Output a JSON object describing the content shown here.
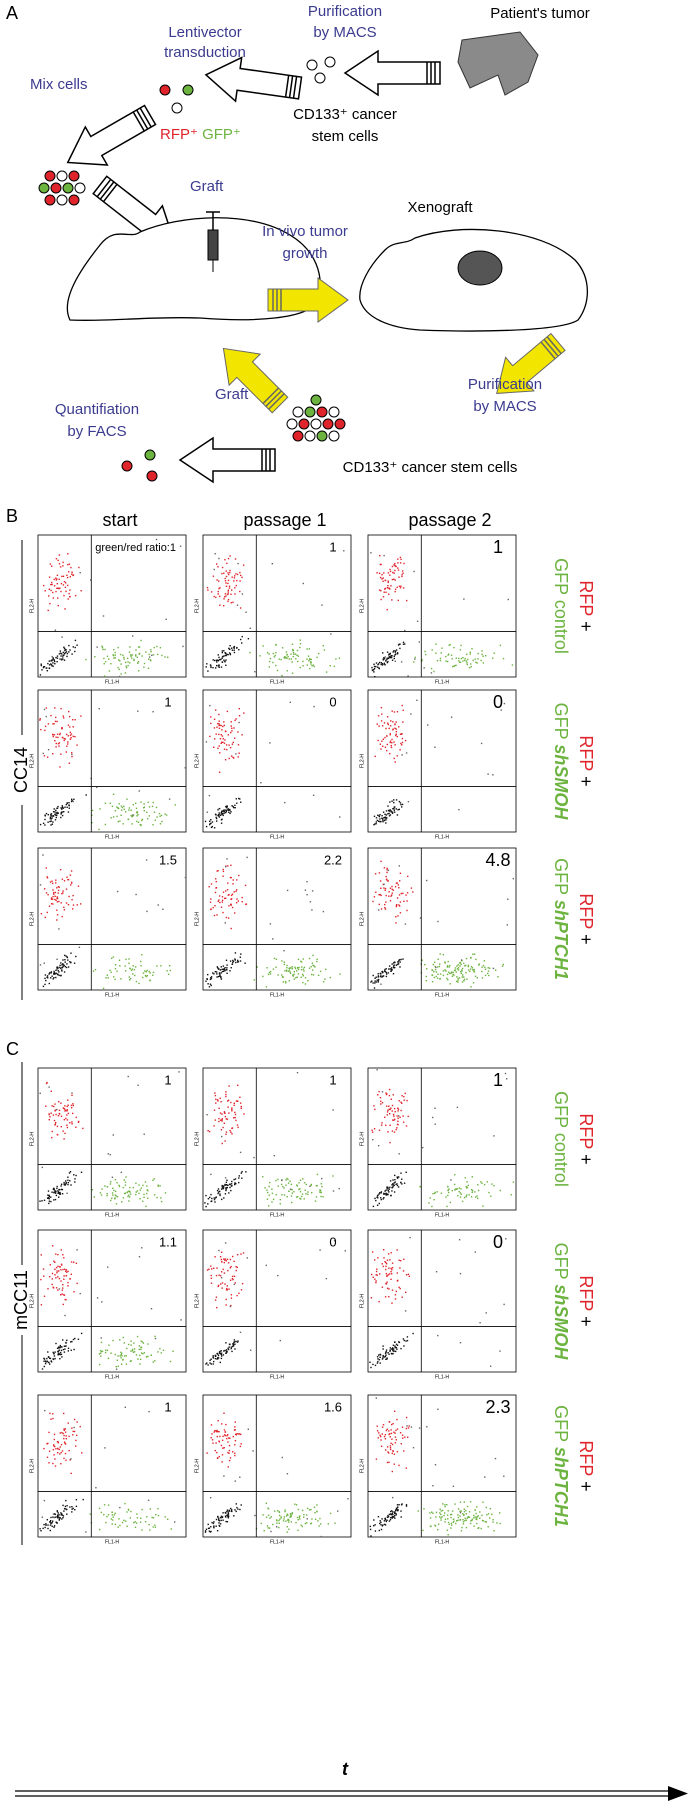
{
  "panel_a": {
    "label": "A",
    "patients_tumor": "Patient's tumor",
    "purification_1": [
      "Purification",
      "by MACS"
    ],
    "cd133_1": [
      "CD133⁺ cancer",
      "stem cells"
    ],
    "lentivector": [
      "Lentivector",
      "transduction"
    ],
    "mix_cells": "Mix cells",
    "rfp": "RFP⁺",
    "gfp": "GFP⁺",
    "graft_1": "Graft",
    "in_vivo": [
      "In vivo tumor",
      "growth"
    ],
    "xenograft": "Xenograft",
    "purification_2": [
      "Purification",
      "by MACS"
    ],
    "graft_2": "Graft",
    "quantification": [
      "Quantifiation",
      "by FACS"
    ],
    "cd133_2": "CD133⁺ cancer stem cells"
  },
  "columns": [
    "start",
    "passage 1",
    "passage 2"
  ],
  "axis_labels": {
    "x": "FL1-H",
    "y": "FL2-H"
  },
  "rfp": "RFP",
  "plus": "+",
  "gfp": "GFP",
  "panels": [
    {
      "label": "B",
      "cell_line": "CC14",
      "rows": [
        {
          "condition": "control",
          "ratios": [
            "green/red ratio:1",
            1,
            1
          ]
        },
        {
          "condition": "shSMOH",
          "ratios": [
            1,
            0,
            0
          ]
        },
        {
          "condition": "shPTCH1",
          "ratios": [
            1.5,
            2.2,
            4.8
          ]
        }
      ]
    },
    {
      "label": "C",
      "cell_line": "mCC11",
      "rows": [
        {
          "condition": "control",
          "ratios": [
            1,
            1,
            1
          ]
        },
        {
          "condition": "shSMOH",
          "ratios": [
            1.1,
            0,
            0
          ]
        },
        {
          "condition": "shPTCH1",
          "ratios": [
            1,
            1.6,
            2.3
          ]
        }
      ]
    }
  ],
  "time_axis": "t"
}
